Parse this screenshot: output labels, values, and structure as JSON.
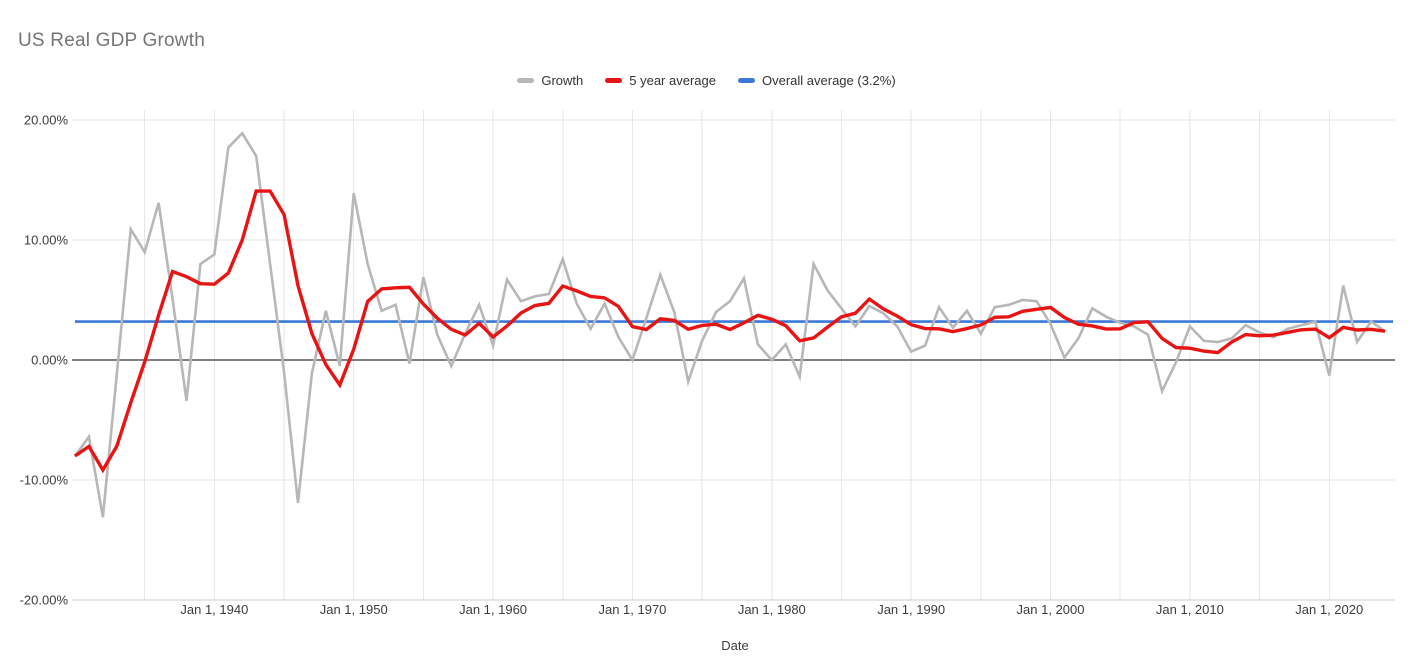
{
  "title": "US Real GDP Growth",
  "legend": {
    "items": [
      {
        "label": "Growth",
        "color": "#b7b7b7"
      },
      {
        "label": "5 year average",
        "color": "#e81313"
      },
      {
        "label": "Overall average (3.2%)",
        "color": "#3c78d8"
      }
    ]
  },
  "axis": {
    "x_title": "Date",
    "y_ticks": [
      {
        "value": 20,
        "label": "20.00%"
      },
      {
        "value": 10,
        "label": "10.00%"
      },
      {
        "value": 0,
        "label": "0.00%"
      },
      {
        "value": -10,
        "label": "-10.00%"
      },
      {
        "value": -20,
        "label": "-20.00%"
      }
    ],
    "x_ticks": [
      {
        "year": 1940,
        "label": "Jan 1, 1940"
      },
      {
        "year": 1950,
        "label": "Jan 1, 1950"
      },
      {
        "year": 1960,
        "label": "Jan 1, 1960"
      },
      {
        "year": 1970,
        "label": "Jan 1, 1970"
      },
      {
        "year": 1980,
        "label": "Jan 1, 1980"
      },
      {
        "year": 1990,
        "label": "Jan 1, 1990"
      },
      {
        "year": 2000,
        "label": "Jan 1, 2000"
      },
      {
        "year": 2010,
        "label": "Jan 1, 2010"
      },
      {
        "year": 2020,
        "label": "Jan 1, 2020"
      }
    ]
  },
  "colors": {
    "gridline": "#e6e6e6",
    "zero_line": "#808080",
    "baseline": "#cccccc",
    "growth": "#b7b7b7",
    "five_year_average": "#e81313",
    "overall_average": "#3c78d8",
    "title_text": "#757575",
    "tick_text": "#3c3c3c"
  },
  "chart_data": {
    "type": "line",
    "title": "US Real GDP Growth",
    "xlabel": "Date",
    "ylabel": "",
    "ylim": [
      -20,
      20
    ],
    "x_start": 1930,
    "x_end": 2024,
    "x_gridline_start": 1935,
    "x_gridline_step": 5,
    "legend_position": "top-center",
    "overall_average_value": 3.2,
    "years": [
      1930,
      1931,
      1932,
      1933,
      1934,
      1935,
      1936,
      1937,
      1938,
      1939,
      1940,
      1941,
      1942,
      1943,
      1944,
      1945,
      1946,
      1947,
      1948,
      1949,
      1950,
      1951,
      1952,
      1953,
      1954,
      1955,
      1956,
      1957,
      1958,
      1959,
      1960,
      1961,
      1962,
      1963,
      1964,
      1965,
      1966,
      1967,
      1968,
      1969,
      1970,
      1971,
      1972,
      1973,
      1974,
      1975,
      1976,
      1977,
      1978,
      1979,
      1980,
      1981,
      1982,
      1983,
      1984,
      1985,
      1986,
      1987,
      1988,
      1989,
      1990,
      1991,
      1992,
      1993,
      1994,
      1995,
      1996,
      1997,
      1998,
      1999,
      2000,
      2001,
      2002,
      2003,
      2004,
      2005,
      2006,
      2007,
      2008,
      2009,
      2010,
      2011,
      2012,
      2013,
      2014,
      2015,
      2016,
      2017,
      2018,
      2019,
      2020,
      2021,
      2022,
      2023,
      2024
    ],
    "series": [
      {
        "name": "Growth",
        "color": "#b7b7b7",
        "width": 2.6,
        "values": [
          -8.0,
          -6.4,
          -13.1,
          -1.2,
          10.9,
          9.0,
          13.1,
          5.1,
          -3.4,
          8.0,
          8.8,
          17.7,
          18.9,
          17.0,
          8.0,
          -1.0,
          -11.9,
          -1.1,
          4.1,
          -0.5,
          13.9,
          8.0,
          4.1,
          4.6,
          -0.3,
          6.9,
          2.1,
          -0.5,
          2.2,
          4.6,
          1.2,
          6.7,
          4.9,
          5.3,
          5.5,
          8.4,
          4.7,
          2.6,
          4.7,
          1.9,
          0.0,
          3.5,
          7.1,
          4.0,
          -1.8,
          1.6,
          4.0,
          4.9,
          6.8,
          1.3,
          0.0,
          1.3,
          -1.4,
          8.0,
          5.8,
          4.3,
          2.8,
          4.5,
          3.9,
          2.8,
          0.7,
          1.2,
          4.4,
          2.7,
          4.1,
          2.2,
          4.4,
          4.6,
          5.0,
          4.9,
          3.0,
          0.2,
          1.8,
          4.3,
          3.6,
          3.1,
          2.8,
          2.1,
          -2.6,
          -0.2,
          2.8,
          1.6,
          1.5,
          1.8,
          2.9,
          2.3,
          1.9,
          2.6,
          2.9,
          3.2,
          -1.3,
          6.2,
          1.5,
          3.2,
          2.4
        ]
      },
      {
        "name": "5 year average",
        "color": "#e81313",
        "width": 3.4,
        "values": [
          -8.0,
          -7.2,
          -9.17,
          -7.18,
          -3.56,
          -0.16,
          3.74,
          7.38,
          6.94,
          6.36,
          6.32,
          7.24,
          10.0,
          14.08,
          14.08,
          12.12,
          6.2,
          2.2,
          -0.38,
          -2.08,
          0.9,
          4.88,
          5.92,
          6.02,
          6.06,
          4.66,
          3.48,
          2.56,
          2.08,
          3.06,
          1.92,
          2.84,
          3.92,
          4.54,
          4.72,
          6.16,
          5.76,
          5.3,
          5.18,
          4.46,
          2.78,
          2.54,
          3.44,
          3.3,
          2.56,
          2.88,
          2.98,
          2.54,
          3.1,
          3.72,
          3.4,
          2.86,
          1.6,
          1.84,
          2.74,
          3.6,
          3.9,
          5.08,
          4.26,
          3.66,
          2.94,
          2.62,
          2.6,
          2.36,
          2.62,
          2.92,
          3.56,
          3.6,
          4.06,
          4.22,
          4.38,
          3.54,
          2.98,
          2.84,
          2.58,
          2.6,
          3.12,
          3.18,
          1.8,
          1.04,
          0.98,
          0.74,
          0.62,
          1.5,
          2.12,
          2.02,
          2.08,
          2.3,
          2.52,
          2.58,
          1.86,
          2.72,
          2.5,
          2.56,
          2.4
        ]
      },
      {
        "name": "Overall average (3.2%)",
        "color": "#3c78d8",
        "width": 2.6,
        "constant": 3.2
      }
    ]
  }
}
